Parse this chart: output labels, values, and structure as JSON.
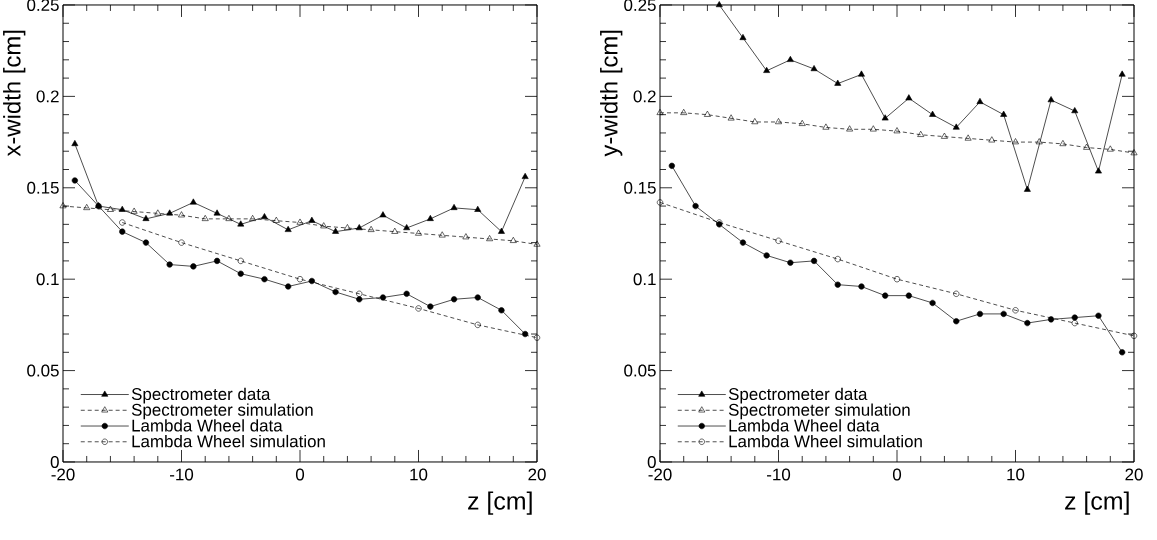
{
  "chart_data": [
    {
      "type": "line",
      "xlabel": "z [cm]",
      "ylabel": "x-width [cm]",
      "xlim": [
        -20,
        20
      ],
      "ylim": [
        0,
        0.25
      ],
      "xticks": [
        -20,
        -10,
        0,
        10,
        20
      ],
      "yticks": [
        0,
        0.05,
        0.1,
        0.15,
        0.2,
        0.25
      ],
      "legend": "bottom left",
      "grid": false,
      "series": [
        {
          "name": "Spectrometer data",
          "color": "#000000",
          "marker": "triangle",
          "line_style": "solid",
          "x": [
            -19,
            -17,
            -15,
            -13,
            -11,
            -9,
            -7,
            -5,
            -3,
            -1,
            1,
            3,
            5,
            7,
            9,
            11,
            13,
            15,
            17,
            19
          ],
          "values": [
            0.174,
            0.14,
            0.138,
            0.133,
            0.136,
            0.142,
            0.136,
            0.13,
            0.134,
            0.127,
            0.132,
            0.126,
            0.128,
            0.135,
            0.128,
            0.133,
            0.139,
            0.138,
            0.126,
            0.156
          ]
        },
        {
          "name": "Spectrometer simulation",
          "color": "#000000",
          "marker": "triangle",
          "line_style": "dashed",
          "x": [
            -20,
            -18,
            -16,
            -14,
            -12,
            -10,
            -8,
            -6,
            -4,
            -2,
            0,
            2,
            4,
            6,
            8,
            10,
            12,
            14,
            16,
            18,
            20
          ],
          "values": [
            0.14,
            0.139,
            0.138,
            0.137,
            0.136,
            0.135,
            0.133,
            0.133,
            0.133,
            0.132,
            0.131,
            0.129,
            0.128,
            0.127,
            0.126,
            0.125,
            0.124,
            0.123,
            0.122,
            0.121,
            0.119
          ]
        },
        {
          "name": "Lambda Wheel data",
          "color": "#000000",
          "marker": "circle",
          "line_style": "solid",
          "x": [
            -19,
            -17,
            -15,
            -13,
            -11,
            -9,
            -7,
            -5,
            -3,
            -1,
            1,
            3,
            5,
            7,
            9,
            11,
            13,
            15,
            17,
            19
          ],
          "values": [
            0.154,
            0.14,
            0.126,
            0.12,
            0.108,
            0.107,
            0.11,
            0.103,
            0.1,
            0.096,
            0.099,
            0.093,
            0.089,
            0.09,
            0.092,
            0.085,
            0.089,
            0.09,
            0.083,
            0.07
          ]
        },
        {
          "name": "Lambda Wheel simulation",
          "color": "#000000",
          "marker": "circle",
          "line_style": "dashed",
          "x": [
            -15,
            -10,
            -5,
            0,
            5,
            10,
            15,
            20
          ],
          "values": [
            0.131,
            0.12,
            0.11,
            0.1,
            0.092,
            0.084,
            0.075,
            0.068
          ]
        }
      ]
    },
    {
      "type": "line",
      "xlabel": "z [cm]",
      "ylabel": "y-width [cm]",
      "xlim": [
        -20,
        20
      ],
      "ylim": [
        0,
        0.25
      ],
      "xticks": [
        -20,
        -10,
        0,
        10,
        20
      ],
      "yticks": [
        0,
        0.05,
        0.1,
        0.15,
        0.2,
        0.25
      ],
      "legend": "bottom left",
      "grid": false,
      "series": [
        {
          "name": "Spectrometer data",
          "color": "#000000",
          "marker": "triangle",
          "line_style": "solid",
          "x": [
            -15,
            -13,
            -11,
            -9,
            -7,
            -5,
            -3,
            -1,
            1,
            3,
            5,
            7,
            9,
            11,
            13,
            15,
            17,
            19
          ],
          "values": [
            0.25,
            0.232,
            0.214,
            0.22,
            0.215,
            0.207,
            0.212,
            0.188,
            0.199,
            0.19,
            0.183,
            0.197,
            0.19,
            0.149,
            0.198,
            0.192,
            0.159,
            0.212
          ]
        },
        {
          "name": "Spectrometer simulation",
          "color": "#000000",
          "marker": "triangle",
          "line_style": "dashed",
          "x": [
            -20,
            -18,
            -16,
            -14,
            -12,
            -10,
            -8,
            -6,
            -4,
            -2,
            0,
            2,
            4,
            6,
            8,
            10,
            12,
            14,
            16,
            18,
            20
          ],
          "values": [
            0.191,
            0.191,
            0.19,
            0.188,
            0.186,
            0.186,
            0.185,
            0.183,
            0.182,
            0.182,
            0.181,
            0.179,
            0.178,
            0.177,
            0.176,
            0.175,
            0.175,
            0.174,
            0.172,
            0.171,
            0.169
          ]
        },
        {
          "name": "Lambda Wheel data",
          "color": "#000000",
          "marker": "circle",
          "line_style": "solid",
          "x": [
            -19,
            -17,
            -15,
            -13,
            -11,
            -9,
            -7,
            -5,
            -3,
            -1,
            1,
            3,
            5,
            7,
            9,
            11,
            13,
            15,
            17,
            19
          ],
          "values": [
            0.162,
            0.14,
            0.13,
            0.12,
            0.113,
            0.109,
            0.11,
            0.097,
            0.096,
            0.091,
            0.091,
            0.087,
            0.077,
            0.081,
            0.081,
            0.076,
            0.078,
            0.079,
            0.08,
            0.06
          ]
        },
        {
          "name": "Lambda Wheel simulation",
          "color": "#000000",
          "marker": "circle",
          "line_style": "dashed",
          "x": [
            -20,
            -15,
            -10,
            -5,
            0,
            5,
            10,
            15,
            20
          ],
          "values": [
            0.142,
            0.131,
            0.121,
            0.111,
            0.1,
            0.092,
            0.083,
            0.076,
            0.069
          ]
        }
      ]
    }
  ]
}
